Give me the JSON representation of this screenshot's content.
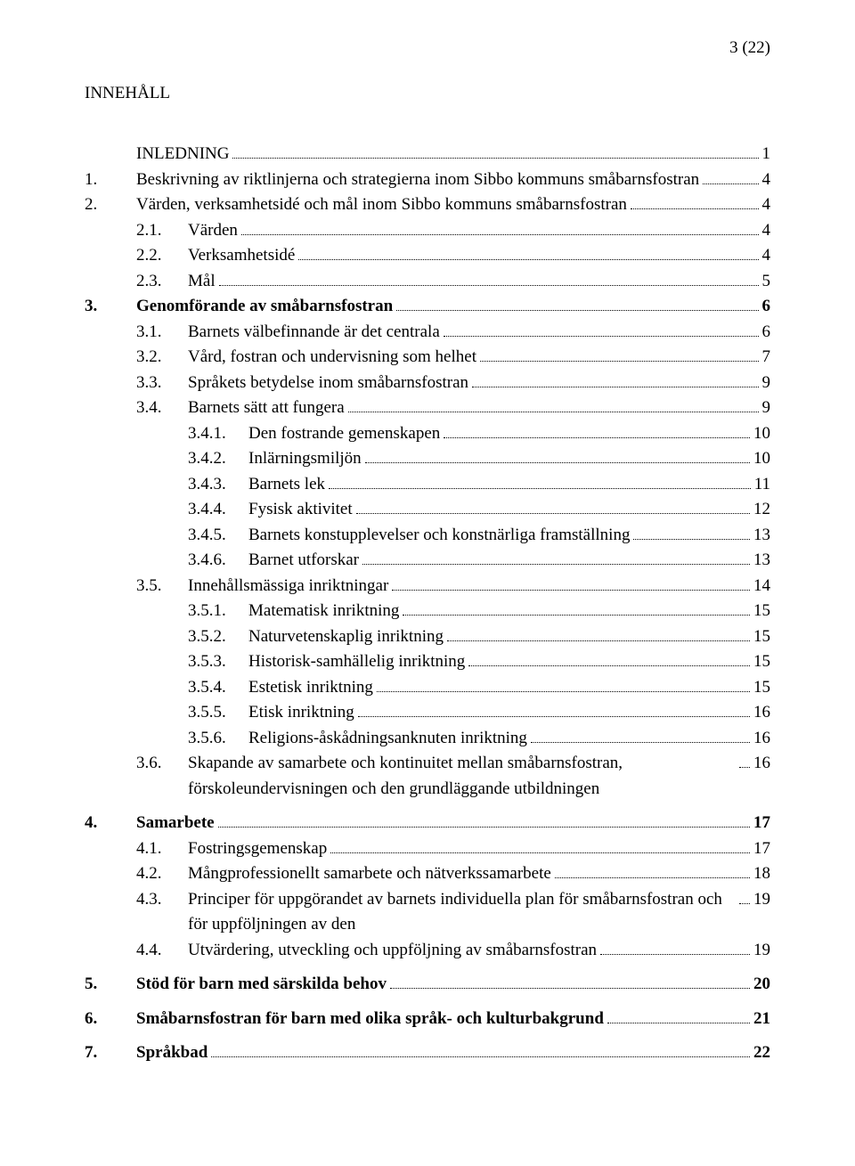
{
  "page_indicator": "3 (22)",
  "heading": "INNEHÅLL",
  "entries": [
    {
      "kind": "row",
      "indent": 0,
      "num": "",
      "title": "INLEDNING",
      "page": "1",
      "bold": false
    },
    {
      "kind": "row",
      "indent": 0,
      "num": "1.",
      "title": "Beskrivning av riktlinjerna och strategierna inom Sibbo kommuns småbarnsfostran",
      "page": "4",
      "bold": false
    },
    {
      "kind": "row",
      "indent": 0,
      "num": "2.",
      "title": "Värden, verksamhetsidé och mål inom Sibbo kommuns småbarnsfostran",
      "page": "4",
      "bold": false
    },
    {
      "kind": "row",
      "indent": 1,
      "num": "2.1.",
      "title": "Värden",
      "page": "4",
      "bold": false
    },
    {
      "kind": "row",
      "indent": 1,
      "num": "2.2.",
      "title": "Verksamhetsidé",
      "page": "4",
      "bold": false
    },
    {
      "kind": "row",
      "indent": 1,
      "num": "2.3.",
      "title": "Mål",
      "page": "5",
      "bold": false
    },
    {
      "kind": "row",
      "indent": 0,
      "num": "3.",
      "title": "Genomförande av småbarnsfostran",
      "page": "6",
      "bold": true
    },
    {
      "kind": "row",
      "indent": 1,
      "num": "3.1.",
      "title": "Barnets välbefinnande är det centrala",
      "page": "6",
      "bold": false
    },
    {
      "kind": "row",
      "indent": 1,
      "num": "3.2.",
      "title": "Vård, fostran och undervisning som helhet",
      "page": "7",
      "bold": false
    },
    {
      "kind": "row",
      "indent": 1,
      "num": "3.3.",
      "title": "Språkets betydelse inom småbarnsfostran",
      "page": "9",
      "bold": false
    },
    {
      "kind": "row",
      "indent": 1,
      "num": "3.4.",
      "title": "Barnets sätt att fungera",
      "page": "9",
      "bold": false
    },
    {
      "kind": "row",
      "indent": 2,
      "num": "3.4.1.",
      "title": "Den fostrande gemenskapen",
      "page": "10",
      "bold": false
    },
    {
      "kind": "row",
      "indent": 2,
      "num": "3.4.2.",
      "title": "Inlärningsmiljön",
      "page": "10",
      "bold": false
    },
    {
      "kind": "row",
      "indent": 2,
      "num": "3.4.3.",
      "title": "Barnets lek",
      "page": "11",
      "bold": false
    },
    {
      "kind": "row",
      "indent": 2,
      "num": "3.4.4.",
      "title": "Fysisk aktivitet",
      "page": "12",
      "bold": false
    },
    {
      "kind": "row",
      "indent": 2,
      "num": "3.4.5.",
      "title": "Barnets konstupplevelser och konstnärliga framställning",
      "page": "13",
      "bold": false
    },
    {
      "kind": "row",
      "indent": 2,
      "num": "3.4.6.",
      "title": "Barnet utforskar",
      "page": "13",
      "bold": false
    },
    {
      "kind": "row",
      "indent": 1,
      "num": "3.5.",
      "title": "Innehållsmässiga inriktningar",
      "page": "14",
      "bold": false
    },
    {
      "kind": "row",
      "indent": 2,
      "num": "3.5.1.",
      "title": "Matematisk inriktning",
      "page": "15",
      "bold": false
    },
    {
      "kind": "row",
      "indent": 2,
      "num": "3.5.2.",
      "title": "Naturvetenskaplig inriktning",
      "page": "15",
      "bold": false
    },
    {
      "kind": "row",
      "indent": 2,
      "num": "3.5.3.",
      "title": "Historisk-samhällelig inriktning",
      "page": "15",
      "bold": false
    },
    {
      "kind": "row",
      "indent": 2,
      "num": "3.5.4.",
      "title": "Estetisk inriktning",
      "page": "15",
      "bold": false
    },
    {
      "kind": "row",
      "indent": 2,
      "num": "3.5.5.",
      "title": "Etisk inriktning",
      "page": "16",
      "bold": false
    },
    {
      "kind": "row",
      "indent": 2,
      "num": "3.5.6.",
      "title": "Religions-åskådningsanknuten inriktning",
      "page": "16",
      "bold": false
    },
    {
      "kind": "row",
      "indent": 1,
      "num": "3.6.",
      "title": "Skapande av samarbete och kontinuitet mellan småbarnsfostran, förskoleundervisningen och den grundläggande utbildningen",
      "page": "16",
      "bold": false
    },
    {
      "kind": "gap"
    },
    {
      "kind": "row",
      "indent": 0,
      "num": "4.",
      "title": "Samarbete",
      "page": "17",
      "bold": true
    },
    {
      "kind": "row",
      "indent": 1,
      "num": "4.1.",
      "title": "Fostringsgemenskap",
      "page": "17",
      "bold": false
    },
    {
      "kind": "row",
      "indent": 1,
      "num": "4.2.",
      "title": "Mångprofessionellt samarbete och nätverkssamarbete",
      "page": "18",
      "bold": false
    },
    {
      "kind": "row",
      "indent": 1,
      "num": "4.3.",
      "title": "Principer för uppgörandet av barnets individuella plan för småbarnsfostran och för uppföljningen av den",
      "page": "19",
      "bold": false
    },
    {
      "kind": "row",
      "indent": 1,
      "num": "4.4.",
      "title": "Utvärdering, utveckling och uppföljning av småbarnsfostran",
      "page": "19",
      "bold": false
    },
    {
      "kind": "gap"
    },
    {
      "kind": "row",
      "indent": 0,
      "num": "5.",
      "title": "Stöd för barn med särskilda behov",
      "page": "20",
      "bold": true
    },
    {
      "kind": "gap"
    },
    {
      "kind": "row",
      "indent": 0,
      "num": "6.",
      "title": "Småbarnsfostran för barn med olika språk- och kulturbakgrund",
      "page": "21",
      "bold": true
    },
    {
      "kind": "gap"
    },
    {
      "kind": "row",
      "indent": 0,
      "num": "7.",
      "title": "Språkbad",
      "page": "22",
      "bold": true
    }
  ]
}
